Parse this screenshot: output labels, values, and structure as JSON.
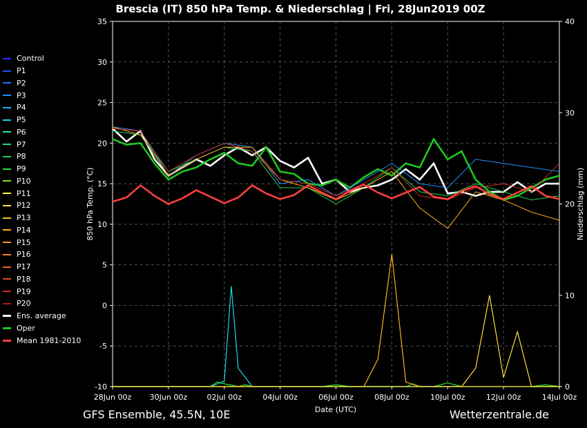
{
  "chart_data": {
    "type": "line",
    "title": "Brescia  (IT)  850 hPa Temp. & Niederschlag | Fri, 28Jun2019 00Z",
    "xlabel": "Date (UTC)",
    "ylabel": "850 hPa Temp. (°C)",
    "y2label": "Niederschlag (mm)",
    "xlim": [
      0,
      16
    ],
    "x_ticks": [
      "28Jun 00z",
      "30Jun 00z",
      "02Jul 00z",
      "04Jul 00z",
      "06Jul 00z",
      "08Jul 00z",
      "10Jul 00z",
      "12Jul 00z",
      "14Jul 00z"
    ],
    "y_ticks": [
      35,
      30,
      25,
      20,
      15,
      10,
      5,
      0,
      -5,
      -10
    ],
    "ylim": [
      -10,
      35
    ],
    "y2_ticks": [
      40,
      30,
      20,
      10,
      0
    ],
    "y2lim": [
      0,
      40
    ],
    "grid": true,
    "legend_position": "left",
    "footer_left": "GFS Ensemble, 45.5N, 10E",
    "footer_right": "Wetterzentrale.de",
    "legend": [
      {
        "name": "Control",
        "color": "#3030ff"
      },
      {
        "name": "P1",
        "color": "#2050ff"
      },
      {
        "name": "P2",
        "color": "#2070ff"
      },
      {
        "name": "P3",
        "color": "#2090ff"
      },
      {
        "name": "P4",
        "color": "#20b0ff"
      },
      {
        "name": "P5",
        "color": "#20d8e8"
      },
      {
        "name": "P6",
        "color": "#20e8b0"
      },
      {
        "name": "P7",
        "color": "#20e080"
      },
      {
        "name": "P8",
        "color": "#20d050"
      },
      {
        "name": "P9",
        "color": "#30e030"
      },
      {
        "name": "P10",
        "color": "#80e020"
      },
      {
        "name": "P11",
        "color": "#ffff30"
      },
      {
        "name": "P12",
        "color": "#ffe040"
      },
      {
        "name": "P13",
        "color": "#ffc830"
      },
      {
        "name": "P14",
        "color": "#ffb020"
      },
      {
        "name": "P15",
        "color": "#ff9820"
      },
      {
        "name": "P16",
        "color": "#ff8020"
      },
      {
        "name": "P17",
        "color": "#f06820"
      },
      {
        "name": "P18",
        "color": "#e05020"
      },
      {
        "name": "P19",
        "color": "#d03020"
      },
      {
        "name": "P20",
        "color": "#b02010"
      },
      {
        "name": "Ens. average",
        "color": "#ffffff"
      },
      {
        "name": "Oper",
        "color": "#20c820"
      },
      {
        "name": "Mean 1981-2010",
        "color": "#ff4040"
      }
    ],
    "temperature_series": [
      {
        "name": "Ens. average",
        "color": "#ffffff",
        "x": [
          0,
          0.5,
          1,
          1.5,
          2,
          2.5,
          3,
          3.5,
          4,
          4.5,
          5,
          5.5,
          6,
          6.5,
          7,
          7.5,
          8,
          8.5,
          9,
          9.5,
          10,
          10.5,
          11,
          11.5,
          12,
          12.5,
          13,
          13.5,
          14,
          14.5,
          15,
          15.5,
          16
        ],
        "values": [
          21.8,
          20.2,
          21.5,
          18,
          16,
          17,
          18,
          17.2,
          18.5,
          19.5,
          18.5,
          19.5,
          17.8,
          17,
          18.2,
          15,
          15.5,
          14,
          14.5,
          14.8,
          15.5,
          16.8,
          15.5,
          17.5,
          13.8,
          14,
          13.5,
          14,
          14,
          15.2,
          14,
          15,
          15
        ]
      },
      {
        "name": "Oper",
        "color": "#20c820",
        "x": [
          0,
          0.5,
          1,
          1.5,
          2,
          2.5,
          3,
          3.5,
          4,
          4.5,
          5,
          5.5,
          6,
          6.5,
          7,
          7.5,
          8,
          8.5,
          9,
          9.5,
          10,
          10.5,
          11,
          11.5,
          12,
          12.5,
          13,
          13.5,
          14,
          14.5,
          15,
          15.5,
          16
        ],
        "values": [
          20.5,
          19.8,
          20,
          17.5,
          15.5,
          16.5,
          17,
          18,
          18.8,
          17.5,
          17.2,
          19.5,
          16.5,
          16.2,
          15,
          14.8,
          15.5,
          14.5,
          15.8,
          16.8,
          16,
          17.5,
          17,
          20.5,
          18,
          19,
          15.5,
          14,
          13,
          13.5,
          14.5,
          15.5,
          16
        ]
      },
      {
        "name": "P3",
        "color": "#2090ff",
        "x": [
          0,
          1,
          2,
          3,
          4,
          5,
          6,
          7,
          8,
          9,
          10,
          11,
          12,
          13,
          14,
          15,
          16
        ],
        "values": [
          22,
          21.5,
          16,
          18.5,
          20,
          19.5,
          15,
          15.5,
          13.5,
          15.5,
          17.5,
          15,
          14.5,
          18,
          17.5,
          17,
          16.5
        ]
      },
      {
        "name": "P8",
        "color": "#20d050",
        "x": [
          0,
          1,
          2,
          3,
          4,
          5,
          6,
          7,
          8,
          9,
          10,
          11,
          12,
          13,
          14,
          15,
          16
        ],
        "values": [
          21.5,
          21,
          16.5,
          18,
          19.5,
          19,
          14.5,
          14.5,
          12.5,
          14.5,
          17,
          14,
          13.5,
          15,
          14,
          13,
          13.5
        ]
      },
      {
        "name": "P14",
        "color": "#ffb020",
        "x": [
          0,
          1,
          2,
          3,
          4,
          5,
          6,
          7,
          8,
          9,
          10,
          11,
          12,
          13,
          14,
          15,
          16
        ],
        "values": [
          22,
          21,
          16,
          18,
          19.5,
          19.5,
          15.5,
          14.5,
          13,
          14.5,
          16.5,
          12,
          9.5,
          14,
          13,
          11.5,
          10.5
        ]
      },
      {
        "name": "P19",
        "color": "#d03020",
        "x": [
          0,
          1,
          2,
          3,
          4,
          5,
          6,
          7,
          8,
          9,
          10,
          11,
          12,
          13,
          14,
          15,
          16
        ],
        "values": [
          21.8,
          21.5,
          16.5,
          18.5,
          20,
          19,
          15.5,
          15,
          13.5,
          15,
          17,
          13.5,
          13,
          14.5,
          15,
          14,
          17.5
        ]
      },
      {
        "name": "Mean 1981-2010",
        "color": "#ff4040",
        "x": [
          0,
          0.5,
          1,
          1.5,
          2,
          2.5,
          3,
          3.5,
          4,
          4.5,
          5,
          5.5,
          6,
          6.5,
          7,
          7.5,
          8,
          8.5,
          9,
          9.5,
          10,
          10.5,
          11,
          11.5,
          12,
          12.5,
          13,
          13.5,
          14,
          14.5,
          15,
          15.5,
          16
        ],
        "values": [
          12.8,
          13.3,
          14.8,
          13.5,
          12.5,
          13.2,
          14.2,
          13.4,
          12.6,
          13.3,
          14.8,
          13.8,
          13.1,
          13.6,
          14.8,
          13.9,
          13.1,
          14.1,
          14.9,
          13.9,
          13.2,
          13.9,
          14.6,
          13.4,
          13.1,
          14.1,
          14.7,
          13.7,
          13.1,
          13.9,
          14.7,
          13.5,
          13.1
        ]
      }
    ],
    "precip_series": [
      {
        "name": "Oper",
        "color": "#20c820",
        "x": [
          0,
          1,
          2,
          3,
          3.5,
          4,
          4.5,
          5,
          5.5,
          6,
          6.5,
          7,
          7.5,
          8,
          8.5,
          9,
          9.5,
          10,
          10.5,
          11,
          11.5,
          12,
          12.5,
          13,
          13.5,
          14,
          14.5,
          15,
          15.5,
          16
        ],
        "values": [
          0,
          0,
          0,
          0,
          0,
          0,
          0,
          0,
          0,
          0,
          0,
          0,
          0,
          0,
          0,
          0,
          0,
          0,
          0,
          0,
          0,
          0,
          0,
          0,
          0,
          0,
          0,
          0,
          0,
          0
        ]
      },
      {
        "name": "P9",
        "color": "#30e030",
        "x": [
          0,
          3,
          3.5,
          3.75,
          4,
          4.5,
          4.75,
          5,
          5.5,
          6,
          6.5,
          7,
          7.5,
          8,
          8.5,
          9,
          9.5,
          10,
          10.5,
          10.75,
          11,
          11.5,
          12,
          12.5,
          13,
          13.5,
          14,
          14.5,
          15,
          15.5,
          16
        ],
        "values": [
          0,
          0,
          0,
          0.5,
          0.3,
          0,
          0.2,
          0,
          0,
          0,
          0,
          0,
          0,
          0.2,
          0,
          0,
          0,
          0,
          0,
          0.3,
          0,
          0,
          0.4,
          0,
          0,
          0,
          0,
          0,
          0,
          0.2,
          0
        ]
      },
      {
        "name": "P5",
        "color": "#20d8e8",
        "x": [
          0,
          3.5,
          4,
          4.25,
          4.5,
          5,
          5.5,
          6,
          6.5,
          7,
          7.5,
          8,
          8.5,
          9,
          9.5,
          10,
          10.5,
          11,
          11.5,
          12,
          12.5,
          13,
          13.5,
          14,
          14.5,
          15,
          15.5,
          16
        ],
        "values": [
          0,
          0,
          0.6,
          11,
          2,
          0,
          0,
          0,
          0,
          0,
          0,
          0,
          0,
          0,
          0,
          0,
          0,
          0,
          0,
          0,
          0,
          0,
          0,
          0,
          0,
          0,
          0,
          0
        ]
      },
      {
        "name": "P14",
        "color": "#ffb020",
        "x": [
          0,
          9,
          9.5,
          10,
          10.5,
          11,
          11.5,
          12,
          13,
          14,
          15,
          16
        ],
        "values": [
          0,
          0,
          3,
          14.5,
          0.5,
          0,
          0,
          0,
          0,
          0,
          0,
          0
        ]
      },
      {
        "name": "P12",
        "color": "#ffe040",
        "x": [
          0,
          12,
          12.5,
          13,
          13.5,
          14,
          14.5,
          15,
          15.5,
          16
        ],
        "values": [
          0,
          0,
          0,
          2,
          10,
          1,
          6,
          0,
          0,
          0
        ]
      }
    ]
  }
}
